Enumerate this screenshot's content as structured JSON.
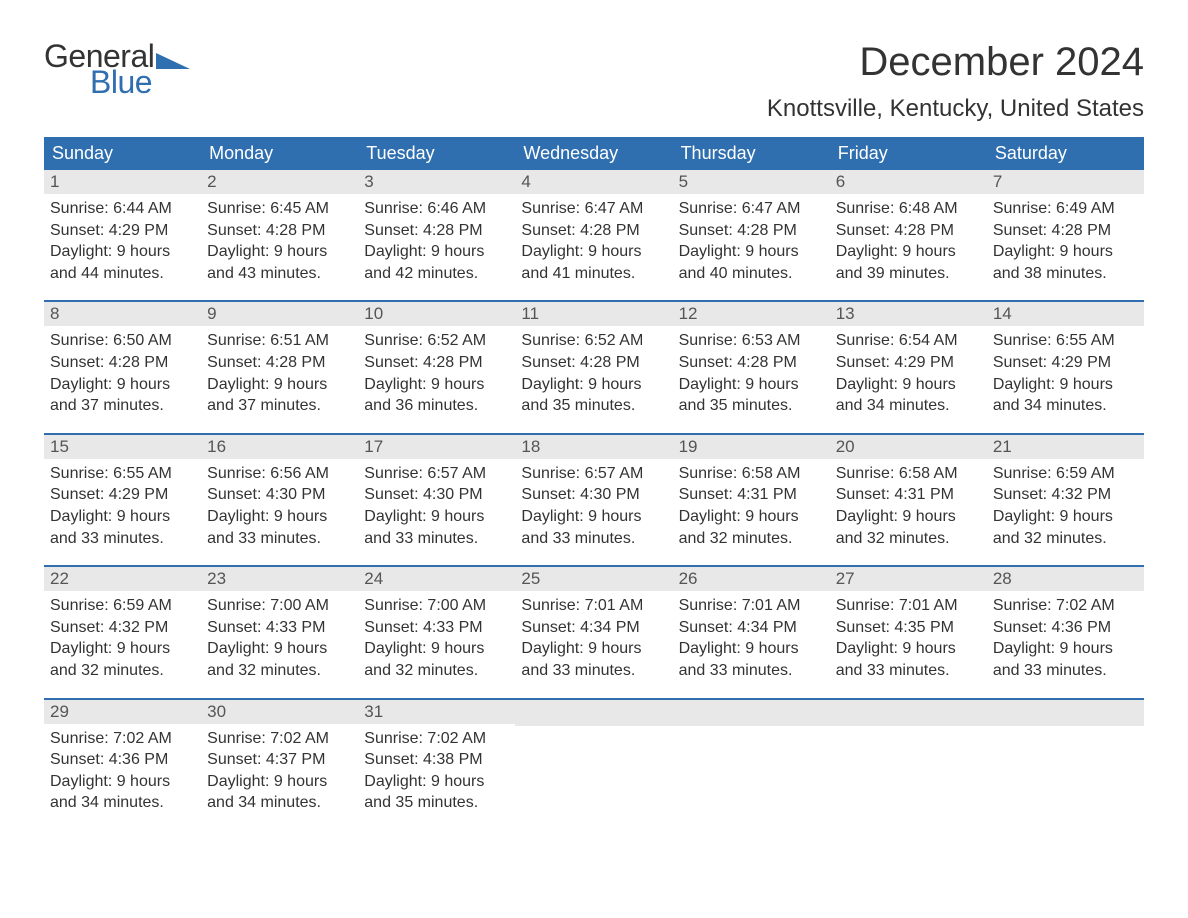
{
  "logo": {
    "word1": "General",
    "word2": "Blue"
  },
  "title": "December 2024",
  "location": "Knottsville, Kentucky, United States",
  "colors": {
    "brand_blue": "#2f6fb0",
    "text": "#333333",
    "daynum_bg": "#e8e8e8",
    "background": "#ffffff"
  },
  "layout": {
    "columns": 7,
    "rows": 5,
    "cell_fontsize": 16,
    "header_fontsize": 18,
    "title_fontsize": 40,
    "location_fontsize": 24
  },
  "header_days": [
    "Sunday",
    "Monday",
    "Tuesday",
    "Wednesday",
    "Thursday",
    "Friday",
    "Saturday"
  ],
  "weeks": [
    [
      {
        "n": "1",
        "sr": "Sunrise: 6:44 AM",
        "ss": "Sunset: 4:29 PM",
        "d1": "Daylight: 9 hours",
        "d2": "and 44 minutes."
      },
      {
        "n": "2",
        "sr": "Sunrise: 6:45 AM",
        "ss": "Sunset: 4:28 PM",
        "d1": "Daylight: 9 hours",
        "d2": "and 43 minutes."
      },
      {
        "n": "3",
        "sr": "Sunrise: 6:46 AM",
        "ss": "Sunset: 4:28 PM",
        "d1": "Daylight: 9 hours",
        "d2": "and 42 minutes."
      },
      {
        "n": "4",
        "sr": "Sunrise: 6:47 AM",
        "ss": "Sunset: 4:28 PM",
        "d1": "Daylight: 9 hours",
        "d2": "and 41 minutes."
      },
      {
        "n": "5",
        "sr": "Sunrise: 6:47 AM",
        "ss": "Sunset: 4:28 PM",
        "d1": "Daylight: 9 hours",
        "d2": "and 40 minutes."
      },
      {
        "n": "6",
        "sr": "Sunrise: 6:48 AM",
        "ss": "Sunset: 4:28 PM",
        "d1": "Daylight: 9 hours",
        "d2": "and 39 minutes."
      },
      {
        "n": "7",
        "sr": "Sunrise: 6:49 AM",
        "ss": "Sunset: 4:28 PM",
        "d1": "Daylight: 9 hours",
        "d2": "and 38 minutes."
      }
    ],
    [
      {
        "n": "8",
        "sr": "Sunrise: 6:50 AM",
        "ss": "Sunset: 4:28 PM",
        "d1": "Daylight: 9 hours",
        "d2": "and 37 minutes."
      },
      {
        "n": "9",
        "sr": "Sunrise: 6:51 AM",
        "ss": "Sunset: 4:28 PM",
        "d1": "Daylight: 9 hours",
        "d2": "and 37 minutes."
      },
      {
        "n": "10",
        "sr": "Sunrise: 6:52 AM",
        "ss": "Sunset: 4:28 PM",
        "d1": "Daylight: 9 hours",
        "d2": "and 36 minutes."
      },
      {
        "n": "11",
        "sr": "Sunrise: 6:52 AM",
        "ss": "Sunset: 4:28 PM",
        "d1": "Daylight: 9 hours",
        "d2": "and 35 minutes."
      },
      {
        "n": "12",
        "sr": "Sunrise: 6:53 AM",
        "ss": "Sunset: 4:28 PM",
        "d1": "Daylight: 9 hours",
        "d2": "and 35 minutes."
      },
      {
        "n": "13",
        "sr": "Sunrise: 6:54 AM",
        "ss": "Sunset: 4:29 PM",
        "d1": "Daylight: 9 hours",
        "d2": "and 34 minutes."
      },
      {
        "n": "14",
        "sr": "Sunrise: 6:55 AM",
        "ss": "Sunset: 4:29 PM",
        "d1": "Daylight: 9 hours",
        "d2": "and 34 minutes."
      }
    ],
    [
      {
        "n": "15",
        "sr": "Sunrise: 6:55 AM",
        "ss": "Sunset: 4:29 PM",
        "d1": "Daylight: 9 hours",
        "d2": "and 33 minutes."
      },
      {
        "n": "16",
        "sr": "Sunrise: 6:56 AM",
        "ss": "Sunset: 4:30 PM",
        "d1": "Daylight: 9 hours",
        "d2": "and 33 minutes."
      },
      {
        "n": "17",
        "sr": "Sunrise: 6:57 AM",
        "ss": "Sunset: 4:30 PM",
        "d1": "Daylight: 9 hours",
        "d2": "and 33 minutes."
      },
      {
        "n": "18",
        "sr": "Sunrise: 6:57 AM",
        "ss": "Sunset: 4:30 PM",
        "d1": "Daylight: 9 hours",
        "d2": "and 33 minutes."
      },
      {
        "n": "19",
        "sr": "Sunrise: 6:58 AM",
        "ss": "Sunset: 4:31 PM",
        "d1": "Daylight: 9 hours",
        "d2": "and 32 minutes."
      },
      {
        "n": "20",
        "sr": "Sunrise: 6:58 AM",
        "ss": "Sunset: 4:31 PM",
        "d1": "Daylight: 9 hours",
        "d2": "and 32 minutes."
      },
      {
        "n": "21",
        "sr": "Sunrise: 6:59 AM",
        "ss": "Sunset: 4:32 PM",
        "d1": "Daylight: 9 hours",
        "d2": "and 32 minutes."
      }
    ],
    [
      {
        "n": "22",
        "sr": "Sunrise: 6:59 AM",
        "ss": "Sunset: 4:32 PM",
        "d1": "Daylight: 9 hours",
        "d2": "and 32 minutes."
      },
      {
        "n": "23",
        "sr": "Sunrise: 7:00 AM",
        "ss": "Sunset: 4:33 PM",
        "d1": "Daylight: 9 hours",
        "d2": "and 32 minutes."
      },
      {
        "n": "24",
        "sr": "Sunrise: 7:00 AM",
        "ss": "Sunset: 4:33 PM",
        "d1": "Daylight: 9 hours",
        "d2": "and 32 minutes."
      },
      {
        "n": "25",
        "sr": "Sunrise: 7:01 AM",
        "ss": "Sunset: 4:34 PM",
        "d1": "Daylight: 9 hours",
        "d2": "and 33 minutes."
      },
      {
        "n": "26",
        "sr": "Sunrise: 7:01 AM",
        "ss": "Sunset: 4:34 PM",
        "d1": "Daylight: 9 hours",
        "d2": "and 33 minutes."
      },
      {
        "n": "27",
        "sr": "Sunrise: 7:01 AM",
        "ss": "Sunset: 4:35 PM",
        "d1": "Daylight: 9 hours",
        "d2": "and 33 minutes."
      },
      {
        "n": "28",
        "sr": "Sunrise: 7:02 AM",
        "ss": "Sunset: 4:36 PM",
        "d1": "Daylight: 9 hours",
        "d2": "and 33 minutes."
      }
    ],
    [
      {
        "n": "29",
        "sr": "Sunrise: 7:02 AM",
        "ss": "Sunset: 4:36 PM",
        "d1": "Daylight: 9 hours",
        "d2": "and 34 minutes."
      },
      {
        "n": "30",
        "sr": "Sunrise: 7:02 AM",
        "ss": "Sunset: 4:37 PM",
        "d1": "Daylight: 9 hours",
        "d2": "and 34 minutes."
      },
      {
        "n": "31",
        "sr": "Sunrise: 7:02 AM",
        "ss": "Sunset: 4:38 PM",
        "d1": "Daylight: 9 hours",
        "d2": "and 35 minutes."
      },
      {
        "n": "",
        "sr": "",
        "ss": "",
        "d1": "",
        "d2": ""
      },
      {
        "n": "",
        "sr": "",
        "ss": "",
        "d1": "",
        "d2": ""
      },
      {
        "n": "",
        "sr": "",
        "ss": "",
        "d1": "",
        "d2": ""
      },
      {
        "n": "",
        "sr": "",
        "ss": "",
        "d1": "",
        "d2": ""
      }
    ]
  ]
}
